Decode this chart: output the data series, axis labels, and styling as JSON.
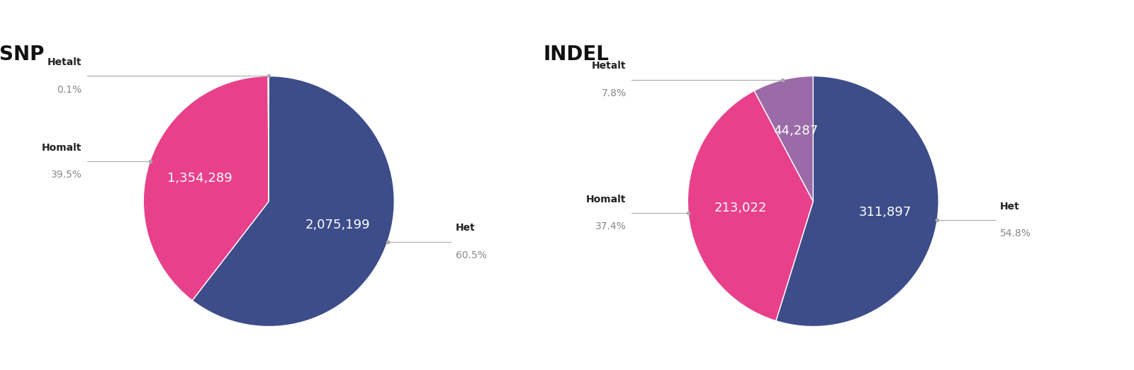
{
  "snp": {
    "title": "SNP",
    "labels": [
      "Het",
      "Homalt",
      "Hetalt"
    ],
    "values": [
      2075199,
      1354289,
      3429
    ],
    "percentages": [
      "60.5%",
      "39.5%",
      "0.1%"
    ],
    "colors": [
      "#3d4d8a",
      "#e8408a",
      "#3d4d8a"
    ],
    "label_values": [
      "2,075,199",
      "1,354,289",
      ""
    ],
    "startangle": 90
  },
  "indel": {
    "title": "INDEL",
    "labels": [
      "Het",
      "Homalt",
      "Hetalt"
    ],
    "values": [
      311897,
      213022,
      44287
    ],
    "percentages": [
      "54.8%",
      "37.4%",
      "7.8%"
    ],
    "colors": [
      "#3d4d8a",
      "#e8408a",
      "#9b6ba8"
    ],
    "label_values": [
      "311,897",
      "213,022",
      "44,287"
    ],
    "startangle": 90
  },
  "bg_color": "#ffffff",
  "title_fontsize": 20,
  "label_fontsize": 10,
  "pct_fontsize": 10,
  "value_fontsize": 13,
  "connector_color": "#aaaaaa",
  "text_color_dark": "#222222",
  "text_color_pct": "#888888"
}
